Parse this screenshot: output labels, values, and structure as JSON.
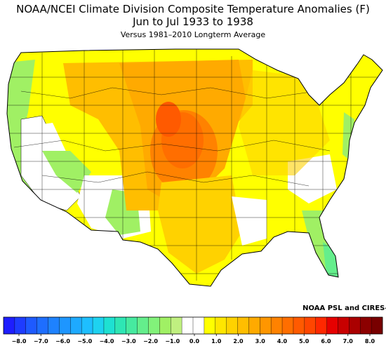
{
  "header": {
    "title": "NOAA/NCEI Climate Division Composite Temperature Anomalies (F)",
    "subtitle": "Jun to Jul 1933 to 1938",
    "caption": "Versus 1981–2010 Longterm Average"
  },
  "credit": "NOAA PSL and CIRES–CU",
  "colorbar": {
    "ticks": [
      "−8.0",
      "−7.0",
      "−6.0",
      "−5.0",
      "−4.0",
      "−3.0",
      "−2.0",
      "−1.0",
      "0.0",
      "1.0",
      "2.0",
      "3.0",
      "4.0",
      "5.0",
      "6.0",
      "7.0",
      "8.0"
    ],
    "colors": [
      "#1e1eff",
      "#1e3cff",
      "#1e5aff",
      "#1e6eff",
      "#1e82ff",
      "#1e96ff",
      "#1eaaff",
      "#1ebeff",
      "#1ed2f0",
      "#1ee1d2",
      "#2ee6b4",
      "#46eaa0",
      "#64ee8c",
      "#82f27a",
      "#a0f064",
      "#c0f080",
      "#ffffff",
      "#ffffff",
      "#ffff00",
      "#ffe600",
      "#ffd200",
      "#ffbe00",
      "#ffaa00",
      "#ff9600",
      "#ff8200",
      "#ff6e00",
      "#ff5a00",
      "#ff4600",
      "#ff2800",
      "#e60000",
      "#c80000",
      "#aa0000",
      "#8c0000",
      "#780000"
    ]
  }
}
